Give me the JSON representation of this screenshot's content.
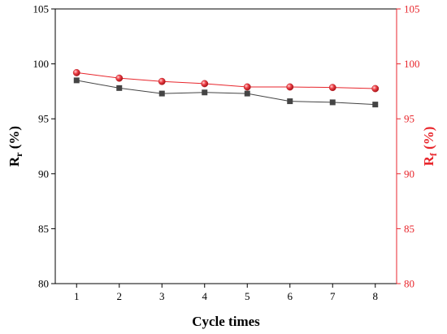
{
  "chart_data": {
    "type": "line",
    "x": [
      1,
      2,
      3,
      4,
      5,
      6,
      7,
      8
    ],
    "xlabel": "Cycle times",
    "xlim": [
      0.5,
      8.5
    ],
    "series": [
      {
        "name": "Rr",
        "axis": "left",
        "color": "#444444",
        "marker": "square",
        "values": [
          98.5,
          97.8,
          97.3,
          97.4,
          97.3,
          96.6,
          96.5,
          96.3
        ]
      },
      {
        "name": "Rf",
        "axis": "right",
        "color": "#e8262c",
        "marker": "sphere",
        "values": [
          99.2,
          98.7,
          98.4,
          98.2,
          97.9,
          97.9,
          97.85,
          97.75
        ]
      }
    ],
    "ylabel_left": {
      "main": "R",
      "sub": "r",
      "unit": " (%)"
    },
    "ylabel_right": {
      "main": "R",
      "sub": "f",
      "unit": " (%)"
    },
    "ylim": [
      80,
      105
    ],
    "yticks": [
      80,
      85,
      90,
      95,
      100,
      105
    ],
    "grid": false,
    "colors": {
      "left_axis": "#000000",
      "right_axis": "#e8262c"
    }
  }
}
